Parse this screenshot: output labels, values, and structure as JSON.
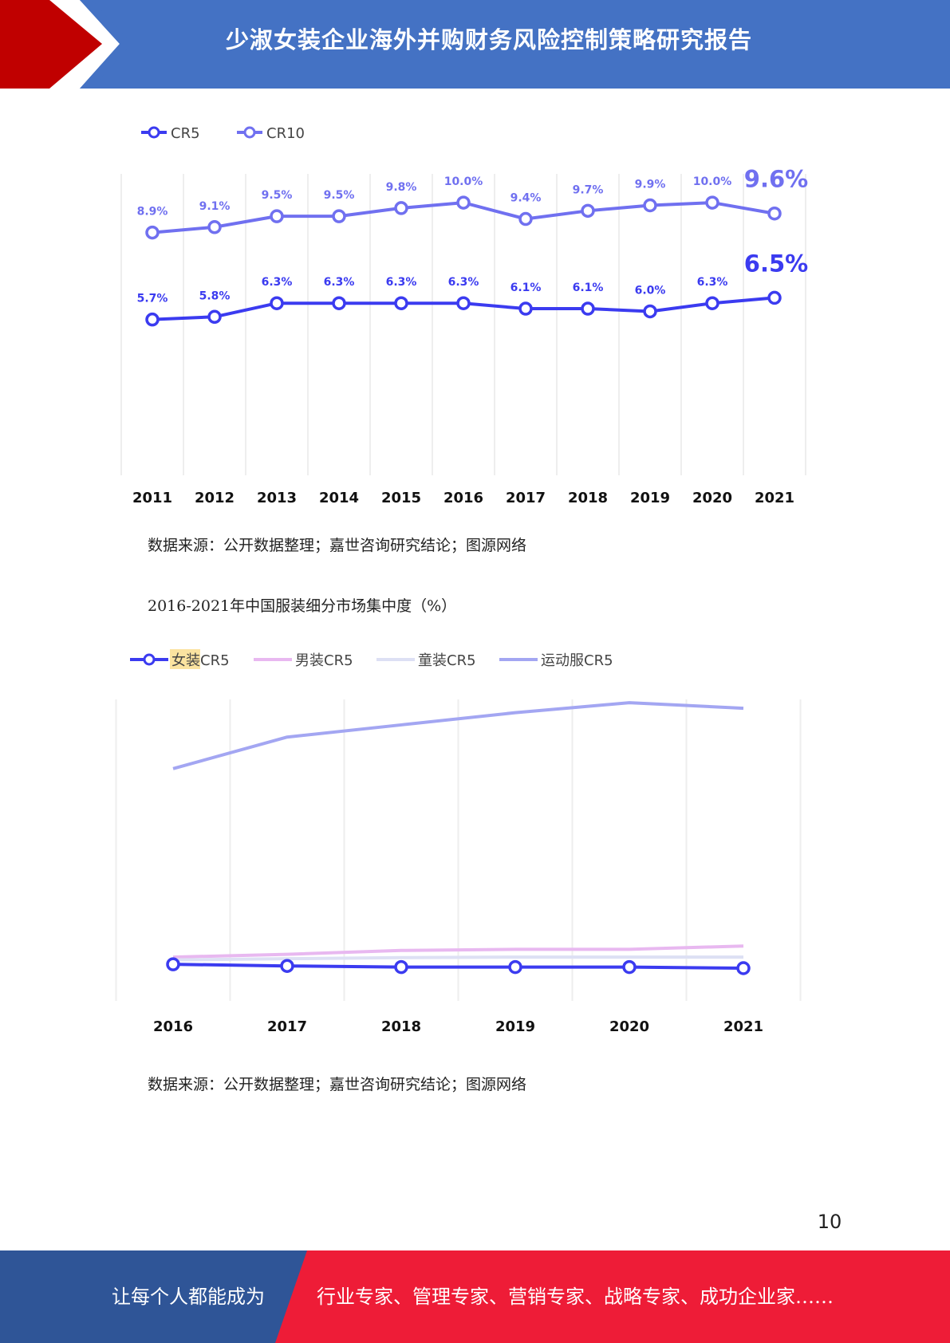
{
  "header": {
    "title": "少淑女装企业海外并购财务风险控制策略研究报告"
  },
  "colors": {
    "header_blue": "#4472c4",
    "header_red": "#c00000",
    "footer_blue": "#2f5597",
    "footer_red": "#ee1c37",
    "cr5": "#3b3bf0",
    "cr10": "#7070f0",
    "menswear": "#e8b8f0",
    "kidswear": "#dde0f4",
    "sportswear": "#a3a6f2"
  },
  "chart_data": [
    {
      "type": "line",
      "title": "",
      "legend": [
        "CR5",
        "CR10"
      ],
      "legend_position": "top-left",
      "grid": "vertical",
      "x": [
        "2011",
        "2012",
        "2013",
        "2014",
        "2015",
        "2016",
        "2017",
        "2018",
        "2019",
        "2020",
        "2021"
      ],
      "ylim": [
        0,
        11
      ],
      "series": [
        {
          "name": "CR5",
          "values": [
            5.7,
            5.8,
            6.3,
            6.3,
            6.3,
            6.3,
            6.1,
            6.1,
            6.0,
            6.3,
            6.5
          ],
          "labels": [
            "5.7%",
            "5.8%",
            "6.3%",
            "6.3%",
            "6.3%",
            "6.3%",
            "6.1%",
            "6.1%",
            "6.0%",
            "6.3%",
            "6.5%"
          ],
          "color": "#3b3bf0"
        },
        {
          "name": "CR10",
          "values": [
            8.9,
            9.1,
            9.5,
            9.5,
            9.8,
            10.0,
            9.4,
            9.7,
            9.9,
            10.0,
            9.6
          ],
          "labels": [
            "8.9%",
            "9.1%",
            "9.5%",
            "9.5%",
            "9.8%",
            "10.0%",
            "9.4%",
            "9.7%",
            "9.9%",
            "10.0%",
            "9.6%"
          ],
          "color": "#7070f0"
        }
      ]
    },
    {
      "type": "line",
      "title": "2016-2021年中国服装细分市场集中度（%）",
      "legend": [
        "女装CR5",
        "男装CR5",
        "童装CR5",
        "运动服CR5"
      ],
      "legend_position": "top-left",
      "grid": "vertical",
      "x": [
        "2016",
        "2017",
        "2018",
        "2019",
        "2020",
        "2021"
      ],
      "ylim": [
        5,
        64
      ],
      "series": [
        {
          "name": "女装CR5",
          "values": [
            11.6,
            11.3,
            11.1,
            11.1,
            11.1,
            10.9
          ],
          "color": "#3b3bf0",
          "markers": true
        },
        {
          "name": "男装CR5",
          "values": [
            12.9,
            13.4,
            14.1,
            14.3,
            14.3,
            14.9
          ],
          "color": "#e8b8f0",
          "markers": false
        },
        {
          "name": "童装CR5",
          "values": [
            12.4,
            12.6,
            12.8,
            12.9,
            12.9,
            12.9
          ],
          "color": "#dde0f4",
          "markers": false
        },
        {
          "name": "运动服CR5",
          "values": [
            46.9,
            52.6,
            54.8,
            57.0,
            58.8,
            57.8
          ],
          "color": "#a3a6f2",
          "markers": false
        }
      ]
    }
  ],
  "source1": "数据来源：公开数据整理；嘉世咨询研究结论；图源网络",
  "caption2": "2016-2021年中国服装细分市场集中度（%）",
  "source2": "数据来源：公开数据整理；嘉世咨询研究结论；图源网络",
  "page_number": "10",
  "footer": {
    "left_text": "让每个人都能成为",
    "right_text": "行业专家、管理专家、营销专家、战略专家、成功企业家……"
  }
}
